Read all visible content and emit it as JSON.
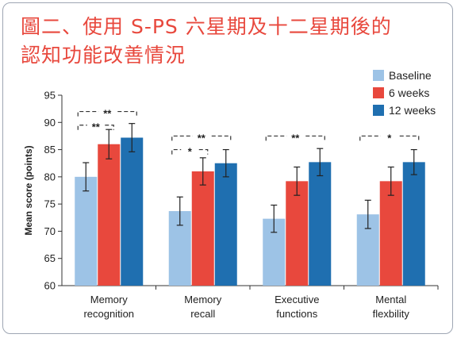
{
  "title_line1": "圖二、使用 S-PS 六星期及十二星期後的",
  "title_line2": "認知功能改善情況",
  "chart_data": {
    "type": "bar",
    "ylabel": "Mean score (points)",
    "ylim": [
      60,
      95
    ],
    "yticks": [
      60,
      65,
      70,
      75,
      80,
      85,
      90,
      95
    ],
    "categories": [
      {
        "line1": "Memory",
        "line2": "recognition"
      },
      {
        "line1": "Memory",
        "line2": "recall"
      },
      {
        "line1": "Executive",
        "line2": "functions"
      },
      {
        "line1": "Mental",
        "line2": "flexbility"
      }
    ],
    "series": [
      {
        "name": "Baseline",
        "color": "#9dc3e6",
        "values": [
          80.0,
          73.7,
          72.3,
          73.1
        ],
        "err": [
          2.6,
          2.6,
          2.5,
          2.6
        ]
      },
      {
        "name": "6 weeks",
        "color": "#e8483d",
        "values": [
          86.0,
          81.0,
          79.2,
          79.2
        ],
        "err": [
          2.7,
          2.5,
          2.6,
          2.6
        ]
      },
      {
        "name": "12 weeks",
        "color": "#1f6fb0",
        "values": [
          87.2,
          82.5,
          82.7,
          82.7
        ],
        "err": [
          2.6,
          2.5,
          2.5,
          2.3
        ]
      }
    ],
    "legend_position": "top-right",
    "significance": [
      {
        "category": 0,
        "from": 0,
        "to": 2,
        "label": "**",
        "level": 92
      },
      {
        "category": 0,
        "from": 0,
        "to": 1,
        "label": "**",
        "level": 89.5
      },
      {
        "category": 1,
        "from": 0,
        "to": 2,
        "label": "**",
        "level": 87.5
      },
      {
        "category": 1,
        "from": 0,
        "to": 1,
        "label": "*",
        "level": 85
      },
      {
        "category": 2,
        "from": 0,
        "to": 2,
        "label": "**",
        "level": 87.5
      },
      {
        "category": 3,
        "from": 0,
        "to": 2,
        "label": "*",
        "level": 87.5
      }
    ]
  }
}
